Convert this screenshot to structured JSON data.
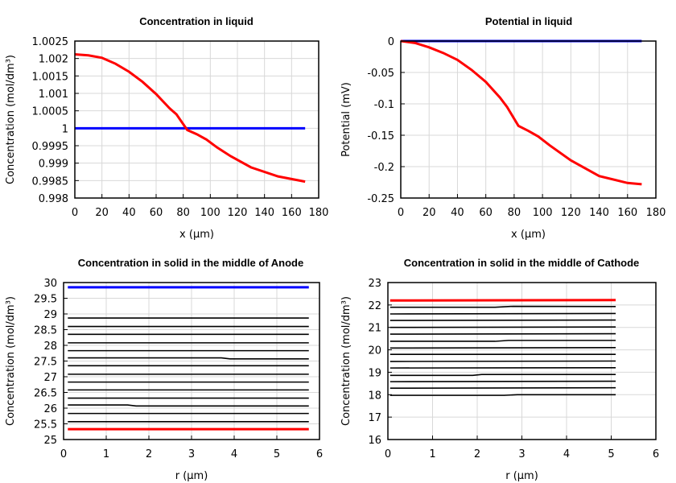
{
  "chart_data": [
    {
      "type": "line",
      "title": "Concentration in liquid",
      "xlabel": "x (µm)",
      "ylabel": "Concentration (mol/dm³)",
      "xlim": [
        0,
        180
      ],
      "ylim": [
        0.998,
        1.0025
      ],
      "grid": true,
      "xticks": [
        "0",
        "20",
        "40",
        "60",
        "80",
        "100",
        "120",
        "140",
        "160",
        "180"
      ],
      "xtick_values": [
        0,
        20,
        40,
        60,
        80,
        100,
        120,
        140,
        160,
        180
      ],
      "yticks": [
        "0.998",
        "0.9985",
        "0.999",
        "0.9995",
        "1",
        "1.0005",
        "1.001",
        "1.0015",
        "1.002",
        "1.0025"
      ],
      "ytick_values": [
        0.998,
        0.9985,
        0.999,
        0.9995,
        1,
        1.0005,
        1.001,
        1.0015,
        1.002,
        1.0025
      ],
      "series": [
        {
          "color": "#0000ff",
          "x": [
            0,
            170
          ],
          "y": [
            1,
            1
          ]
        },
        {
          "color": "#ff0000",
          "x": [
            0,
            10,
            20,
            30,
            40,
            50,
            60,
            70,
            75,
            83,
            90,
            97,
            105,
            115,
            130,
            150,
            170
          ],
          "y": [
            1.00212,
            1.00209,
            1.00202,
            1.00185,
            1.00162,
            1.00133,
            1.00098,
            1.00057,
            1.0004,
            0.99995,
            0.99983,
            0.99968,
            0.99945,
            0.9992,
            0.99888,
            0.99862,
            0.99847
          ]
        }
      ]
    },
    {
      "type": "line",
      "title": "Potential in liquid",
      "xlabel": "x (µm)",
      "ylabel": "Potential (mV)",
      "xlim": [
        0,
        180
      ],
      "ylim": [
        -0.25,
        0
      ],
      "grid": true,
      "xticks": [
        "0",
        "20",
        "40",
        "60",
        "80",
        "100",
        "120",
        "140",
        "160",
        "180"
      ],
      "xtick_values": [
        0,
        20,
        40,
        60,
        80,
        100,
        120,
        140,
        160,
        180
      ],
      "yticks": [
        "-0.25",
        "-0.2",
        "-0.15",
        "-0.1",
        "-0.05",
        "0"
      ],
      "ytick_values": [
        -0.25,
        -0.2,
        -0.15,
        -0.1,
        -0.05,
        0
      ],
      "series": [
        {
          "color": "#0000ff",
          "x": [
            0,
            170
          ],
          "y": [
            0,
            0
          ]
        },
        {
          "color": "#ff0000",
          "x": [
            0,
            10,
            20,
            30,
            40,
            50,
            60,
            70,
            75,
            83,
            90,
            97,
            105,
            120,
            140,
            160,
            170
          ],
          "y": [
            0,
            -0.003,
            -0.01,
            -0.019,
            -0.03,
            -0.046,
            -0.065,
            -0.09,
            -0.105,
            -0.135,
            -0.143,
            -0.152,
            -0.166,
            -0.19,
            -0.215,
            -0.226,
            -0.228
          ]
        }
      ]
    },
    {
      "type": "line",
      "title": "Concentration in solid in the middle of Anode",
      "xlabel": "r (µm)",
      "ylabel": "Concentration (mol/dm³)",
      "xlim": [
        0,
        6
      ],
      "ylim": [
        25,
        30
      ],
      "grid": true,
      "xticks": [
        "0",
        "1",
        "2",
        "3",
        "4",
        "5",
        "6"
      ],
      "xtick_values": [
        0,
        1,
        2,
        3,
        4,
        5,
        6
      ],
      "yticks": [
        "25",
        "25.5",
        "26",
        "26.5",
        "27",
        "27.5",
        "28",
        "28.5",
        "29",
        "29.5",
        "30"
      ],
      "ytick_values": [
        25,
        25.5,
        26,
        26.5,
        27,
        27.5,
        28,
        28.5,
        29,
        29.5,
        30
      ],
      "series": [
        {
          "color": "#0000ff",
          "x": [
            0.1,
            5.75
          ],
          "y": [
            29.85,
            29.85
          ]
        },
        {
          "color": "#000000",
          "x": [
            0.1,
            5.75
          ],
          "y": [
            28.87,
            28.87
          ]
        },
        {
          "color": "#000000",
          "x": [
            0.1,
            5.75
          ],
          "y": [
            28.6,
            28.6
          ]
        },
        {
          "color": "#000000",
          "x": [
            0.1,
            5.75
          ],
          "y": [
            28.35,
            28.35
          ]
        },
        {
          "color": "#000000",
          "x": [
            0.1,
            5.75
          ],
          "y": [
            28.08,
            28.08
          ]
        },
        {
          "color": "#000000",
          "x": [
            0.1,
            5.75
          ],
          "y": [
            27.83,
            27.83
          ]
        },
        {
          "color": "#000000",
          "x": [
            0.1,
            3.7,
            3.9,
            5.75
          ],
          "y": [
            27.6,
            27.6,
            27.57,
            27.57
          ]
        },
        {
          "color": "#000000",
          "x": [
            0.1,
            5.75
          ],
          "y": [
            27.35,
            27.35
          ]
        },
        {
          "color": "#000000",
          "x": [
            0.1,
            5.75
          ],
          "y": [
            27.08,
            27.08
          ]
        },
        {
          "color": "#000000",
          "x": [
            0.1,
            5.75
          ],
          "y": [
            26.83,
            26.83
          ]
        },
        {
          "color": "#000000",
          "x": [
            0.1,
            5.75
          ],
          "y": [
            26.58,
            26.58
          ]
        },
        {
          "color": "#000000",
          "x": [
            0.1,
            5.75
          ],
          "y": [
            26.32,
            26.32
          ]
        },
        {
          "color": "#000000",
          "x": [
            0.1,
            1.5,
            1.7,
            5.75
          ],
          "y": [
            26.1,
            26.1,
            26.07,
            26.07
          ]
        },
        {
          "color": "#000000",
          "x": [
            0.1,
            5.75
          ],
          "y": [
            25.83,
            25.83
          ]
        },
        {
          "color": "#000000",
          "x": [
            0.1,
            5.75
          ],
          "y": [
            25.57,
            25.57
          ]
        },
        {
          "color": "#ff0000",
          "x": [
            0.1,
            5.75
          ],
          "y": [
            25.33,
            25.33
          ]
        }
      ]
    },
    {
      "type": "line",
      "title": "Concentration in solid in the middle of Cathode",
      "xlabel": "r (µm)",
      "ylabel": "Concentration (mol/dm³)",
      "xlim": [
        0,
        6
      ],
      "ylim": [
        16,
        23
      ],
      "grid": true,
      "xticks": [
        "0",
        "1",
        "2",
        "3",
        "4",
        "5",
        "6"
      ],
      "xtick_values": [
        0,
        1,
        2,
        3,
        4,
        5,
        6
      ],
      "yticks": [
        "16",
        "17",
        "18",
        "19",
        "20",
        "21",
        "22",
        "23"
      ],
      "ytick_values": [
        16,
        17,
        18,
        19,
        20,
        21,
        22,
        23
      ],
      "series": [
        {
          "color": "#ff0000",
          "x": [
            0.05,
            5.1
          ],
          "y": [
            22.2,
            22.22
          ]
        },
        {
          "color": "#000000",
          "x": [
            0.05,
            2.4,
            2.8,
            5.1
          ],
          "y": [
            21.9,
            21.9,
            21.94,
            21.93
          ]
        },
        {
          "color": "#000000",
          "x": [
            0.05,
            5.1
          ],
          "y": [
            21.6,
            21.62
          ]
        },
        {
          "color": "#000000",
          "x": [
            0.05,
            5.1
          ],
          "y": [
            21.31,
            21.33
          ]
        },
        {
          "color": "#000000",
          "x": [
            0.05,
            5.1
          ],
          "y": [
            21.0,
            21.02
          ]
        },
        {
          "color": "#000000",
          "x": [
            0.05,
            5.1
          ],
          "y": [
            20.7,
            20.72
          ]
        },
        {
          "color": "#000000",
          "x": [
            0.05,
            2.4,
            2.7,
            5.1
          ],
          "y": [
            20.38,
            20.38,
            20.42,
            20.42
          ]
        },
        {
          "color": "#000000",
          "x": [
            0.05,
            5.1
          ],
          "y": [
            20.08,
            20.1
          ]
        },
        {
          "color": "#000000",
          "x": [
            0.05,
            5.1
          ],
          "y": [
            19.8,
            19.8
          ]
        },
        {
          "color": "#000000",
          "x": [
            0.05,
            5.1
          ],
          "y": [
            19.48,
            19.5
          ]
        },
        {
          "color": "#000000",
          "x": [
            0.05,
            5.1
          ],
          "y": [
            19.19,
            19.2
          ]
        },
        {
          "color": "#000000",
          "x": [
            0.05,
            1.9,
            2.1,
            5.1
          ],
          "y": [
            18.86,
            18.86,
            18.9,
            18.9
          ]
        },
        {
          "color": "#000000",
          "x": [
            0.05,
            5.1
          ],
          "y": [
            18.58,
            18.6
          ]
        },
        {
          "color": "#000000",
          "x": [
            0.05,
            5.1
          ],
          "y": [
            18.29,
            18.31
          ]
        },
        {
          "color": "#000000",
          "x": [
            0.05,
            2.6,
            2.9,
            5.1
          ],
          "y": [
            17.97,
            17.97,
            18.0,
            18.0
          ]
        }
      ]
    }
  ]
}
